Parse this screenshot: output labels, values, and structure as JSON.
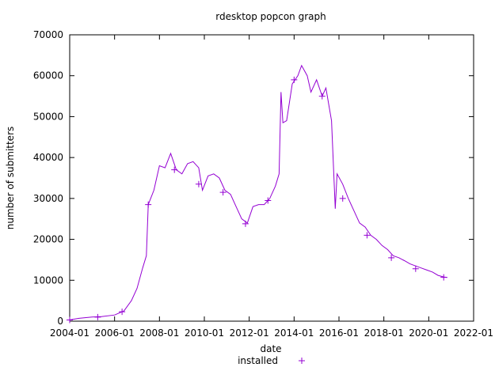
{
  "chart_data": {
    "type": "line",
    "title": "rdesktop popcon graph",
    "xlabel": "date",
    "ylabel": "number of submitters",
    "xlim": [
      "2004-01",
      "2022-01"
    ],
    "ylim": [
      0,
      70000
    ],
    "x_ticks": [
      "2004-01",
      "2006-01",
      "2008-01",
      "2010-01",
      "2012-01",
      "2014-01",
      "2016-01",
      "2018-01",
      "2020-01",
      "2022-01"
    ],
    "y_ticks": [
      0,
      10000,
      20000,
      30000,
      40000,
      50000,
      60000,
      70000
    ],
    "legend": {
      "position": "bottom-center",
      "entries": [
        "installed"
      ]
    },
    "series": [
      {
        "name": "installed",
        "color": "#9400d3",
        "marker": "plus",
        "points": [
          [
            "2004-01",
            300
          ],
          [
            "2004-06",
            700
          ],
          [
            "2005-01",
            1000
          ],
          [
            "2005-06",
            1100
          ],
          [
            "2006-01",
            1500
          ],
          [
            "2006-06",
            2500
          ],
          [
            "2006-10",
            5000
          ],
          [
            "2007-01",
            8000
          ],
          [
            "2007-04",
            13000
          ],
          [
            "2007-06",
            16000
          ],
          [
            "2007-07",
            28500
          ],
          [
            "2007-10",
            32000
          ],
          [
            "2008-01",
            38000
          ],
          [
            "2008-04",
            37500
          ],
          [
            "2008-07",
            41000
          ],
          [
            "2008-10",
            37000
          ],
          [
            "2009-01",
            36000
          ],
          [
            "2009-04",
            38500
          ],
          [
            "2009-07",
            39000
          ],
          [
            "2009-10",
            37500
          ],
          [
            "2009-12",
            32000
          ],
          [
            "2010-03",
            35500
          ],
          [
            "2010-06",
            36000
          ],
          [
            "2010-09",
            35000
          ],
          [
            "2010-12",
            32000
          ],
          [
            "2011-03",
            31000
          ],
          [
            "2011-06",
            28000
          ],
          [
            "2011-09",
            25000
          ],
          [
            "2011-12",
            24000
          ],
          [
            "2012-03",
            28000
          ],
          [
            "2012-06",
            28500
          ],
          [
            "2012-09",
            28500
          ],
          [
            "2012-12",
            30000
          ],
          [
            "2013-03",
            33000
          ],
          [
            "2013-05",
            36000
          ],
          [
            "2013-06",
            56000
          ],
          [
            "2013-07",
            48500
          ],
          [
            "2013-09",
            49000
          ],
          [
            "2013-12",
            58000
          ],
          [
            "2014-03",
            60000
          ],
          [
            "2014-05",
            62500
          ],
          [
            "2014-08",
            60000
          ],
          [
            "2014-10",
            56000
          ],
          [
            "2015-01",
            59000
          ],
          [
            "2015-04",
            55000
          ],
          [
            "2015-06",
            57000
          ],
          [
            "2015-09",
            49000
          ],
          [
            "2015-11",
            27500
          ],
          [
            "2015-12",
            36000
          ],
          [
            "2016-03",
            33500
          ],
          [
            "2016-06",
            30000
          ],
          [
            "2016-09",
            27000
          ],
          [
            "2016-12",
            24000
          ],
          [
            "2017-03",
            23000
          ],
          [
            "2017-06",
            21000
          ],
          [
            "2017-09",
            20000
          ],
          [
            "2017-12",
            18500
          ],
          [
            "2018-03",
            17500
          ],
          [
            "2018-06",
            16000
          ],
          [
            "2018-09",
            15500
          ],
          [
            "2018-12",
            14800
          ],
          [
            "2019-03",
            14000
          ],
          [
            "2019-06",
            13500
          ],
          [
            "2019-09",
            13000
          ],
          [
            "2019-12",
            12500
          ],
          [
            "2020-03",
            12000
          ],
          [
            "2020-06",
            11200
          ],
          [
            "2020-09",
            10800
          ],
          [
            "2020-11",
            10700
          ]
        ],
        "marker_points": [
          [
            "2004-01",
            300
          ],
          [
            "2005-04",
            1000
          ],
          [
            "2006-05",
            2300
          ],
          [
            "2007-07",
            28500
          ],
          [
            "2008-09",
            37000
          ],
          [
            "2009-10",
            33500
          ],
          [
            "2010-11",
            31500
          ],
          [
            "2011-11",
            23800
          ],
          [
            "2012-11",
            29500
          ],
          [
            "2014-01",
            59000
          ],
          [
            "2015-04",
            55000
          ],
          [
            "2016-03",
            30000
          ],
          [
            "2017-04",
            21000
          ],
          [
            "2018-05",
            15500
          ],
          [
            "2019-06",
            12800
          ],
          [
            "2020-09",
            10700
          ]
        ]
      }
    ]
  }
}
